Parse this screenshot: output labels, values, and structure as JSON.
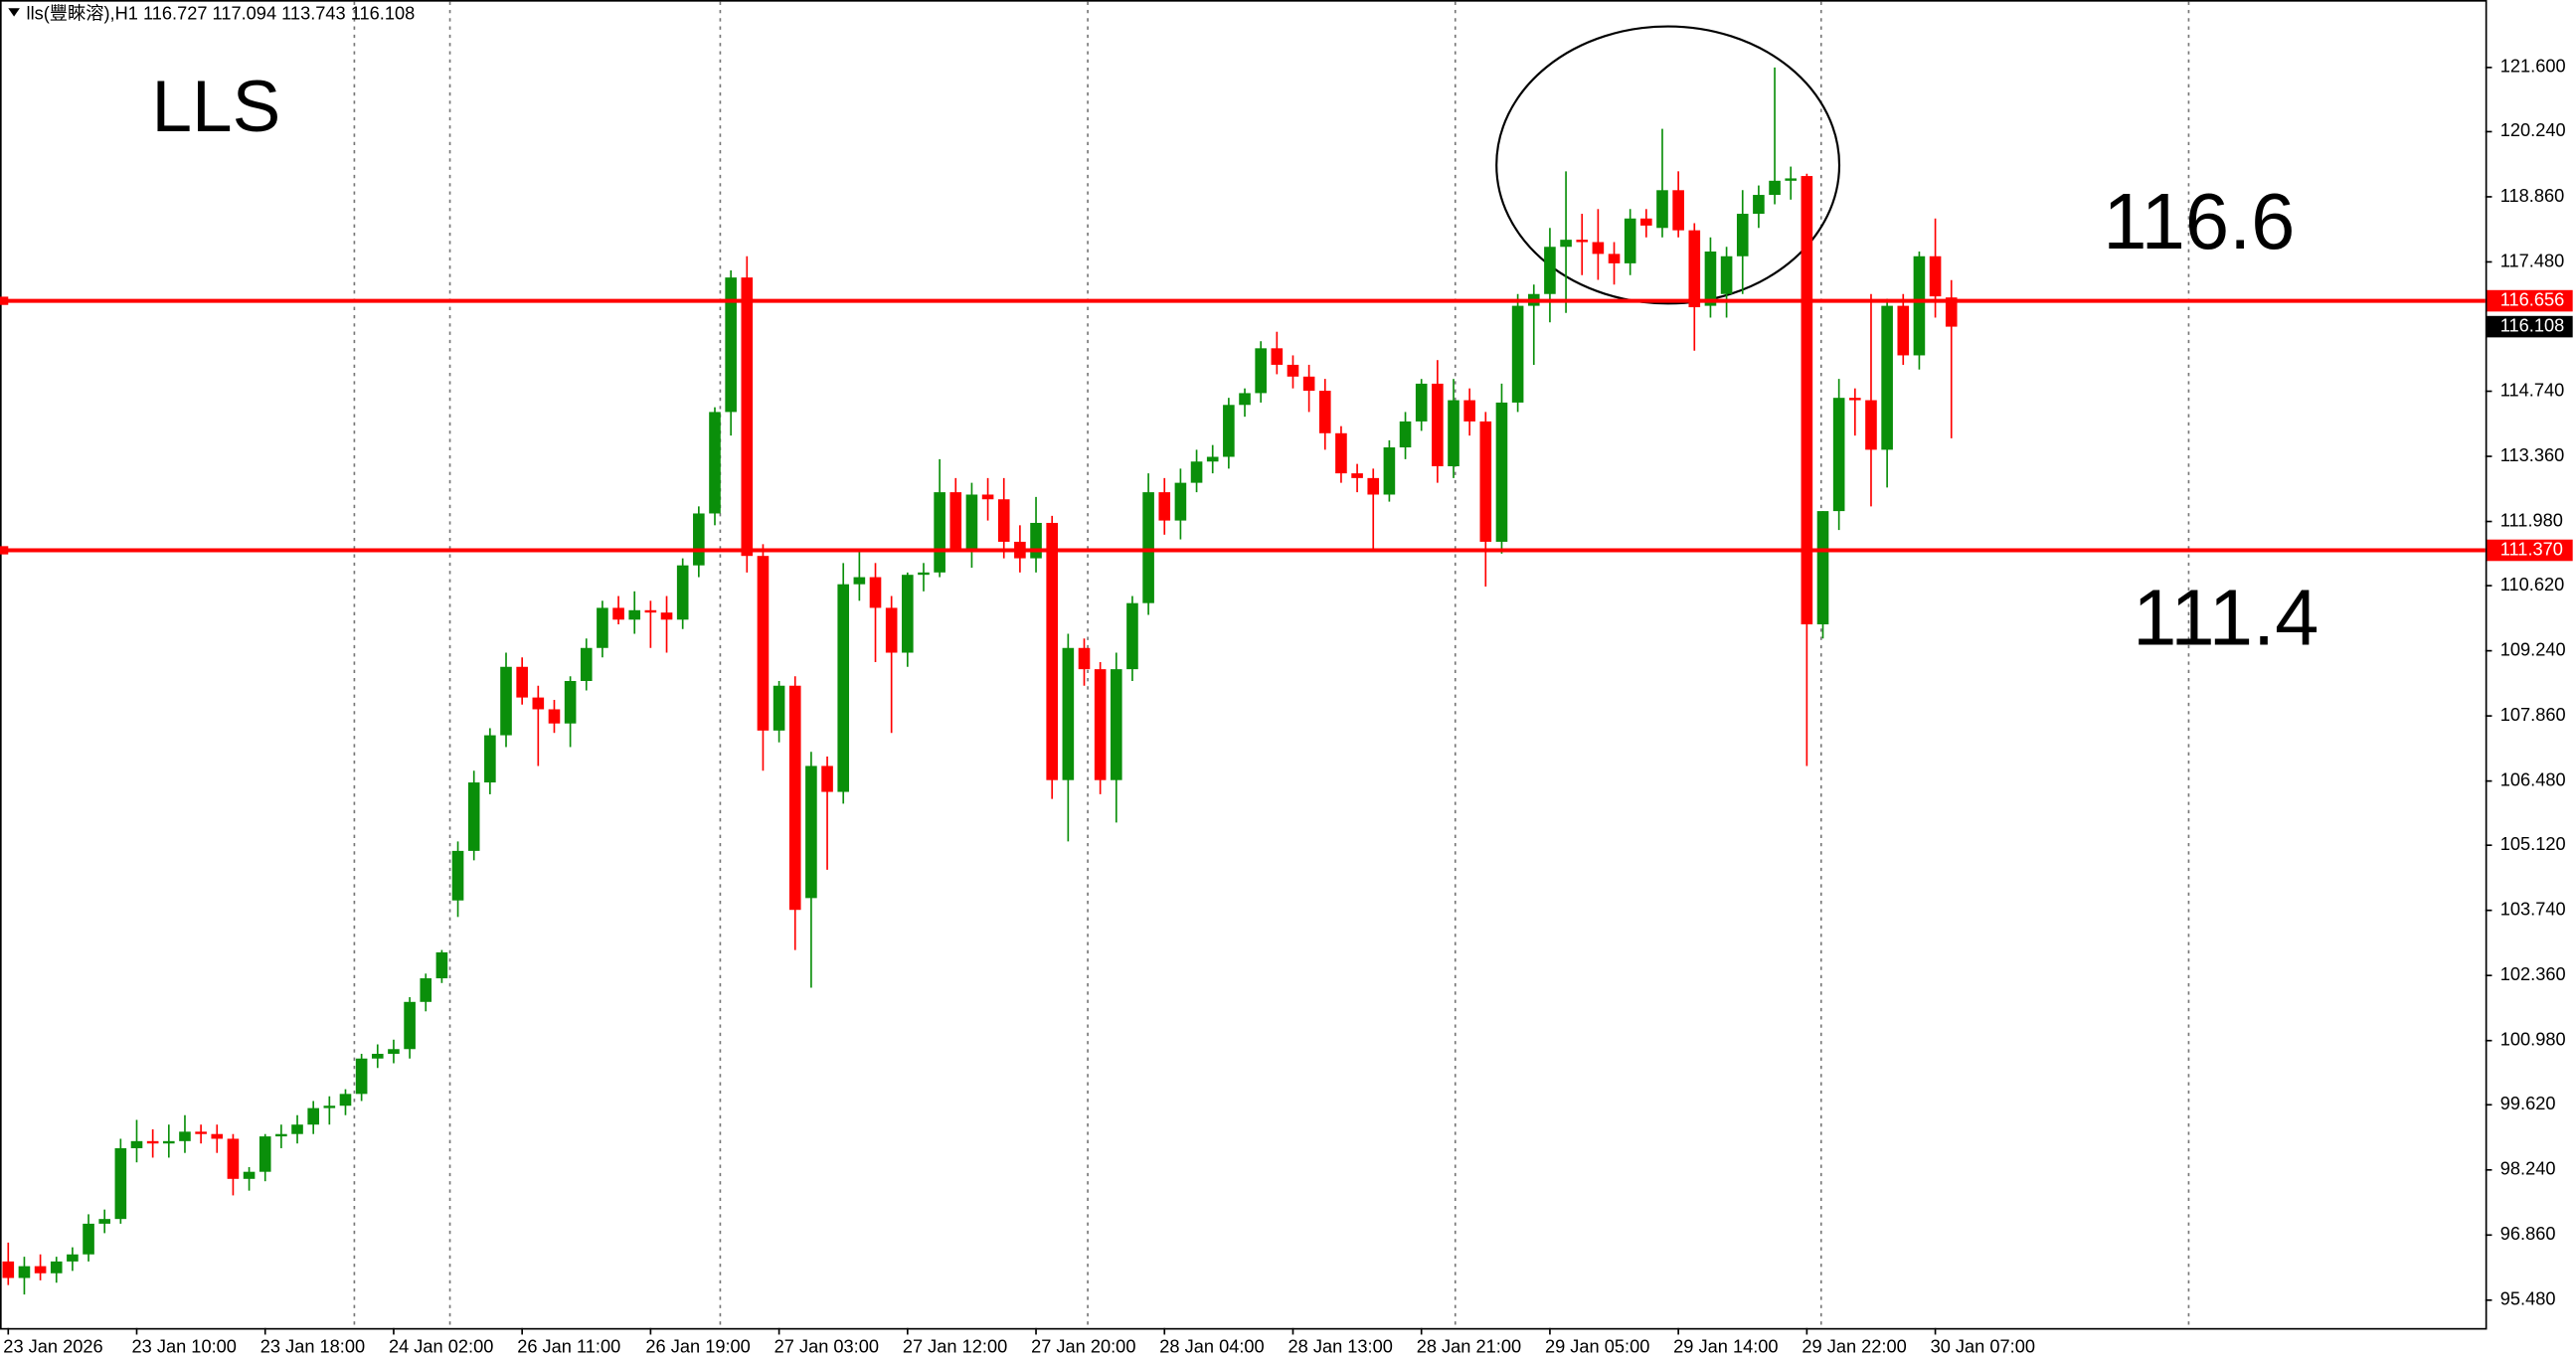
{
  "chart_data": {
    "type": "candlestick",
    "title": "lls(豐睞溶),H1  116.727 117.094 113.743 116.108",
    "up_color": "#0a8f0a",
    "down_color": "#ff0000",
    "categories": [
      "23 Jan 2026",
      null,
      null,
      null,
      null,
      null,
      null,
      null,
      "23 Jan 10:00",
      null,
      null,
      null,
      null,
      null,
      null,
      null,
      "23 Jan 18:00",
      null,
      null,
      null,
      null,
      null,
      null,
      null,
      "24 Jan 02:00",
      null,
      null,
      null,
      null,
      null,
      null,
      null,
      "26 Jan 11:00",
      null,
      null,
      null,
      null,
      null,
      null,
      null,
      "26 Jan 19:00",
      null,
      null,
      null,
      null,
      null,
      null,
      null,
      "27 Jan 03:00",
      null,
      null,
      null,
      null,
      null,
      null,
      null,
      "27 Jan 12:00",
      null,
      null,
      null,
      null,
      null,
      null,
      null,
      "27 Jan 20:00",
      null,
      null,
      null,
      null,
      null,
      null,
      null,
      "28 Jan 04:00",
      null,
      null,
      null,
      null,
      null,
      null,
      null,
      "28 Jan 13:00",
      null,
      null,
      null,
      null,
      null,
      null,
      null,
      "28 Jan 21:00",
      null,
      null,
      null,
      null,
      null,
      null,
      null,
      "29 Jan 05:00",
      null,
      null,
      null,
      null,
      null,
      null,
      null,
      "29 Jan 14:00",
      null,
      null,
      null,
      null,
      null,
      null,
      null,
      "29 Jan 22:00",
      null,
      null,
      null,
      null,
      null,
      null,
      null,
      "30 Jan 07:00",
      null
    ],
    "open": [
      96.3,
      95.95,
      96.2,
      96.05,
      96.3,
      96.45,
      97.1,
      97.2,
      98.7,
      98.85,
      98.8,
      98.85,
      99.05,
      99.0,
      98.9,
      98.05,
      98.2,
      98.95,
      99.0,
      99.2,
      99.55,
      99.6,
      99.85,
      100.6,
      100.7,
      100.8,
      101.8,
      102.3,
      103.95,
      105.0,
      106.45,
      107.45,
      108.9,
      108.25,
      108.0,
      107.7,
      108.6,
      109.3,
      110.15,
      109.9,
      110.1,
      110.05,
      109.9,
      111.05,
      112.15,
      114.3,
      117.15,
      111.25,
      107.55,
      108.5,
      104.0,
      106.8,
      106.25,
      110.65,
      110.8,
      110.15,
      109.2,
      110.85,
      110.9,
      112.6,
      111.4,
      112.55,
      112.45,
      111.55,
      111.2,
      111.95,
      106.5,
      109.3,
      108.85,
      106.5,
      108.85,
      110.25,
      112.6,
      112.0,
      112.8,
      113.25,
      113.35,
      114.45,
      114.7,
      115.65,
      115.3,
      115.05,
      114.75,
      113.85,
      113.0,
      112.9,
      112.55,
      113.55,
      114.1,
      114.9,
      113.15,
      114.55,
      114.1,
      111.55,
      114.5,
      116.55,
      116.8,
      117.8,
      117.95,
      117.9,
      117.65,
      117.45,
      118.4,
      118.2,
      119.0,
      118.15,
      116.55,
      116.8,
      117.6,
      118.5,
      118.9,
      119.2,
      119.3,
      109.8,
      112.2,
      114.6,
      114.55,
      113.5,
      116.55,
      115.5,
      117.6,
      116.727
    ],
    "high": [
      96.7,
      96.4,
      96.45,
      96.4,
      96.6,
      97.3,
      97.4,
      98.9,
      99.3,
      99.1,
      99.2,
      99.4,
      99.2,
      99.2,
      99.0,
      98.3,
      99.0,
      99.2,
      99.4,
      99.7,
      99.8,
      99.95,
      100.7,
      100.9,
      101.0,
      101.9,
      102.4,
      102.9,
      105.2,
      106.7,
      107.6,
      109.2,
      109.1,
      108.5,
      108.2,
      108.7,
      109.5,
      110.3,
      110.4,
      110.5,
      110.3,
      110.4,
      111.2,
      112.3,
      114.4,
      117.3,
      117.6,
      111.5,
      108.6,
      108.7,
      107.1,
      107.0,
      111.1,
      111.4,
      111.1,
      110.4,
      110.9,
      111.1,
      113.3,
      112.9,
      112.8,
      112.9,
      112.9,
      111.9,
      112.5,
      112.1,
      109.6,
      109.5,
      109.0,
      109.2,
      110.4,
      113.0,
      112.9,
      113.1,
      113.5,
      113.6,
      114.6,
      114.8,
      115.8,
      116.0,
      115.5,
      115.3,
      115.0,
      114.0,
      113.2,
      113.1,
      113.7,
      114.3,
      115.0,
      115.4,
      115.0,
      114.8,
      114.3,
      114.9,
      116.8,
      117.0,
      118.2,
      119.4,
      118.5,
      118.6,
      117.9,
      118.6,
      118.6,
      120.3,
      119.4,
      118.3,
      118.0,
      117.8,
      119.0,
      119.1,
      121.6,
      119.5,
      119.35,
      112.2,
      115.0,
      114.8,
      116.8,
      116.7,
      116.8,
      117.7,
      118.4,
      117.094
    ],
    "low": [
      95.8,
      95.6,
      95.9,
      95.85,
      96.1,
      96.3,
      96.9,
      97.1,
      98.4,
      98.5,
      98.5,
      98.6,
      98.8,
      98.6,
      97.7,
      97.8,
      98.0,
      98.7,
      98.8,
      99.0,
      99.2,
      99.4,
      99.7,
      100.4,
      100.5,
      100.6,
      101.6,
      102.2,
      103.6,
      104.8,
      106.2,
      107.2,
      108.1,
      106.8,
      107.5,
      107.2,
      108.4,
      109.1,
      109.8,
      109.6,
      109.3,
      109.2,
      109.7,
      110.8,
      111.9,
      113.8,
      110.9,
      106.7,
      107.3,
      102.9,
      102.1,
      104.6,
      106.0,
      110.3,
      109.0,
      107.5,
      108.9,
      110.5,
      110.8,
      111.4,
      111.0,
      112.0,
      111.2,
      110.9,
      110.9,
      106.1,
      105.2,
      108.5,
      106.2,
      105.6,
      108.6,
      110.0,
      111.7,
      111.6,
      112.6,
      113.0,
      113.1,
      114.2,
      114.5,
      115.1,
      114.8,
      114.3,
      113.5,
      112.8,
      112.6,
      111.4,
      112.4,
      113.3,
      113.9,
      112.8,
      112.9,
      113.8,
      110.6,
      111.3,
      114.3,
      115.3,
      116.2,
      116.4,
      117.2,
      117.1,
      117.0,
      117.2,
      118.0,
      118.0,
      118.0,
      115.6,
      116.3,
      116.3,
      116.8,
      118.2,
      118.7,
      118.8,
      106.8,
      109.5,
      111.8,
      113.8,
      112.3,
      112.7,
      115.3,
      115.2,
      116.3,
      113.743
    ],
    "close": [
      95.95,
      96.2,
      96.05,
      96.3,
      96.45,
      97.1,
      97.2,
      98.7,
      98.85,
      98.8,
      98.85,
      99.05,
      99.0,
      98.9,
      98.05,
      98.2,
      98.95,
      99.0,
      99.2,
      99.55,
      99.6,
      99.85,
      100.6,
      100.7,
      100.8,
      101.8,
      102.3,
      102.85,
      105.0,
      106.45,
      107.45,
      108.9,
      108.25,
      108.0,
      107.7,
      108.6,
      109.3,
      110.15,
      109.9,
      110.1,
      110.05,
      109.9,
      111.05,
      112.15,
      114.3,
      117.15,
      111.25,
      107.55,
      108.5,
      103.75,
      106.8,
      106.25,
      110.65,
      110.8,
      110.15,
      109.2,
      110.85,
      110.9,
      112.6,
      111.4,
      112.55,
      112.45,
      111.55,
      111.2,
      111.95,
      106.5,
      109.3,
      108.85,
      106.5,
      108.85,
      110.25,
      112.6,
      112.0,
      112.8,
      113.25,
      113.35,
      114.45,
      114.7,
      115.65,
      115.3,
      115.05,
      114.75,
      113.85,
      113.0,
      112.9,
      112.55,
      113.55,
      114.1,
      114.9,
      113.15,
      114.55,
      114.1,
      111.55,
      114.5,
      116.55,
      116.8,
      117.8,
      117.95,
      117.9,
      117.65,
      117.45,
      118.4,
      118.25,
      119.0,
      118.15,
      116.52,
      117.7,
      117.6,
      118.5,
      118.9,
      119.2,
      119.25,
      109.8,
      112.2,
      114.6,
      114.55,
      113.5,
      116.55,
      115.5,
      117.6,
      116.75,
      116.108
    ],
    "ylim": [
      94.89,
      123.03
    ],
    "yticks": [
      {
        "value": 121.6,
        "label": "121.600"
      },
      {
        "value": 120.24,
        "label": "120.240"
      },
      {
        "value": 118.86,
        "label": "118.860"
      },
      {
        "value": 117.48,
        "label": "117.480"
      },
      {
        "value": 114.74,
        "label": "114.740"
      },
      {
        "value": 113.36,
        "label": "113.360"
      },
      {
        "value": 111.98,
        "label": "111.980"
      },
      {
        "value": 110.62,
        "label": "110.620"
      },
      {
        "value": 109.24,
        "label": "109.240"
      },
      {
        "value": 107.86,
        "label": "107.860"
      },
      {
        "value": 106.48,
        "label": "106.480"
      },
      {
        "value": 105.12,
        "label": "105.120"
      },
      {
        "value": 103.74,
        "label": "103.740"
      },
      {
        "value": 102.36,
        "label": "102.360"
      },
      {
        "value": 100.98,
        "label": "100.980"
      },
      {
        "value": 99.62,
        "label": "99.620"
      },
      {
        "value": 98.24,
        "label": "98.240"
      },
      {
        "value": 96.86,
        "label": "96.860"
      },
      {
        "value": 95.48,
        "label": "95.480"
      }
    ],
    "hlines": [
      {
        "value": 116.656,
        "label": "116.656",
        "color": "#ff0000"
      },
      {
        "value": 111.37,
        "label": "111.370",
        "color": "#ff0000"
      }
    ],
    "last_price": {
      "value": 116.108,
      "label": "116.108"
    },
    "annotations": [
      "LLS",
      "116.6",
      "111.4"
    ]
  }
}
